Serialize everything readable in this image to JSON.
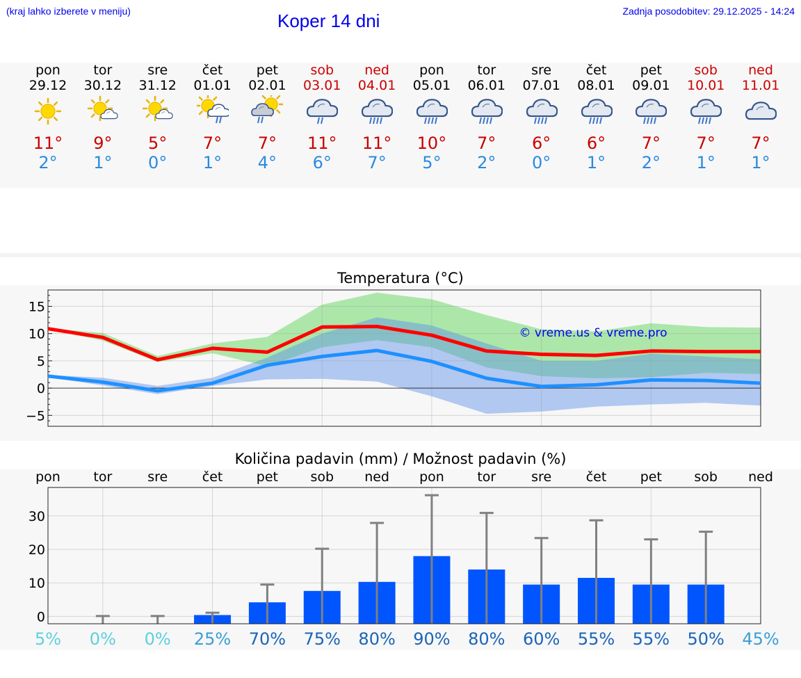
{
  "header": {
    "left_note": "(kraj lahko izberete v meniju)",
    "title": "Koper 14 dni",
    "updated": "Zadnja posodobitev: 29.12.2025 - 14:24"
  },
  "days": [
    {
      "name": "pon",
      "date": "29.12",
      "icon": "sun-icon",
      "tmax": "11°",
      "tmin": "2°",
      "weekend": false
    },
    {
      "name": "tor",
      "date": "30.12",
      "icon": "sun-cloud-icon",
      "tmax": "9°",
      "tmin": "1°",
      "weekend": false
    },
    {
      "name": "sre",
      "date": "31.12",
      "icon": "sun-cloud-icon",
      "tmax": "5°",
      "tmin": "0°",
      "weekend": false
    },
    {
      "name": "čet",
      "date": "01.01",
      "icon": "sun-rain-icon",
      "tmax": "7°",
      "tmin": "1°",
      "weekend": false
    },
    {
      "name": "pet",
      "date": "02.01",
      "icon": "sun-cloud-rain-icon",
      "tmax": "7°",
      "tmin": "4°",
      "weekend": false
    },
    {
      "name": "sob",
      "date": "03.01",
      "icon": "rain-cloud-icon",
      "tmax": "11°",
      "tmin": "6°",
      "weekend": true
    },
    {
      "name": "ned",
      "date": "04.01",
      "icon": "heavy-rain-cloud-icon",
      "tmax": "11°",
      "tmin": "7°",
      "weekend": true
    },
    {
      "name": "pon",
      "date": "05.01",
      "icon": "heavy-rain-cloud-icon",
      "tmax": "10°",
      "tmin": "5°",
      "weekend": false
    },
    {
      "name": "tor",
      "date": "06.01",
      "icon": "heavy-rain-cloud-icon",
      "tmax": "7°",
      "tmin": "2°",
      "weekend": false
    },
    {
      "name": "sre",
      "date": "07.01",
      "icon": "heavy-rain-cloud-icon",
      "tmax": "6°",
      "tmin": "0°",
      "weekend": false
    },
    {
      "name": "čet",
      "date": "08.01",
      "icon": "heavy-rain-cloud-icon",
      "tmax": "6°",
      "tmin": "1°",
      "weekend": false
    },
    {
      "name": "pet",
      "date": "09.01",
      "icon": "heavy-rain-cloud-icon",
      "tmax": "7°",
      "tmin": "2°",
      "weekend": false
    },
    {
      "name": "sob",
      "date": "10.01",
      "icon": "heavy-rain-cloud-icon",
      "tmax": "7°",
      "tmin": "1°",
      "weekend": true
    },
    {
      "name": "ned",
      "date": "11.01",
      "icon": "cloud-icon",
      "tmax": "7°",
      "tmin": "1°",
      "weekend": true
    }
  ],
  "colors": {
    "tmax_line": "#ff0000",
    "tmin_line": "#1e90ff",
    "tmax_band": "#a8e6a4",
    "tmin_band": "#aac4f4",
    "overlap_band": "#79c4a4",
    "bar": "#0055ff",
    "errbar": "#808080",
    "watermark": "#0000ee",
    "tmax_text": "#cc0000",
    "tmin_text": "#2a8ae0"
  },
  "chart_data": [
    {
      "type": "line",
      "title": "Temperatura (°C)",
      "x": [
        0,
        1,
        2,
        3,
        4,
        5,
        6,
        7,
        8,
        9,
        10,
        11,
        12,
        13
      ],
      "ylim": [
        -7,
        18
      ],
      "yticks": [
        -5,
        0,
        5,
        10,
        15
      ],
      "ytick_labels": [
        "−5",
        "0",
        "5",
        "10",
        "15"
      ],
      "grid": true,
      "watermark": "© vreme.us & vreme.pro",
      "series": [
        {
          "name": "Tmax",
          "values": [
            10.9,
            9.3,
            5.2,
            7.3,
            6.6,
            11.2,
            11.3,
            9.7,
            6.8,
            6.2,
            6.0,
            6.8,
            6.7,
            6.7
          ]
        },
        {
          "name": "Tmin",
          "values": [
            2.2,
            1.1,
            -0.5,
            0.9,
            4.2,
            5.8,
            6.9,
            4.9,
            1.8,
            0.3,
            0.6,
            1.5,
            1.4,
            0.9
          ]
        }
      ],
      "bands": [
        {
          "name": "Tmax range",
          "upper": [
            11.0,
            10.1,
            5.9,
            8.2,
            9.4,
            15.3,
            17.5,
            16.3,
            13.4,
            10.8,
            10.4,
            11.9,
            11.2,
            11.1
          ],
          "lower": [
            10.8,
            8.7,
            4.8,
            6.4,
            4.0,
            7.5,
            8.8,
            7.5,
            3.8,
            2.2,
            1.8,
            2.0,
            2.8,
            2.6
          ]
        },
        {
          "name": "Tmin range",
          "upper": [
            2.4,
            1.9,
            0.4,
            1.9,
            5.6,
            10.0,
            13.0,
            11.5,
            8.2,
            5.0,
            5.0,
            6.3,
            5.8,
            5.3
          ],
          "lower": [
            2.0,
            0.5,
            -1.1,
            0.4,
            1.6,
            1.7,
            1.2,
            -1.5,
            -4.7,
            -4.3,
            -3.4,
            -3.0,
            -2.7,
            -3.2
          ]
        }
      ]
    },
    {
      "type": "bar",
      "title": "Količina padavin (mm) / Možnost padavin (%)",
      "categories": [
        "pon",
        "tor",
        "sre",
        "čet",
        "pet",
        "sob",
        "ned",
        "pon",
        "tor",
        "sre",
        "čet",
        "pet",
        "sob",
        "ned"
      ],
      "values": [
        0,
        0,
        0,
        0.4,
        4.2,
        7.6,
        10.3,
        18.0,
        14.0,
        9.5,
        11.5,
        9.5,
        9.5,
        0
      ],
      "error_upper": [
        0,
        0.1,
        0.1,
        1.1,
        9.5,
        20.2,
        27.9,
        36.2,
        30.9,
        23.4,
        28.7,
        23.0,
        25.3,
        0
      ],
      "ylim": [
        -2.2,
        38.5
      ],
      "yticks": [
        0,
        10,
        20,
        30
      ],
      "ylabel": "mm",
      "probabilities": [
        "5%",
        "0%",
        "0%",
        "25%",
        "70%",
        "75%",
        "80%",
        "90%",
        "80%",
        "60%",
        "55%",
        "55%",
        "50%",
        "45%"
      ],
      "probability_values": [
        5,
        0,
        0,
        25,
        70,
        75,
        80,
        90,
        80,
        60,
        55,
        55,
        50,
        45
      ]
    }
  ]
}
